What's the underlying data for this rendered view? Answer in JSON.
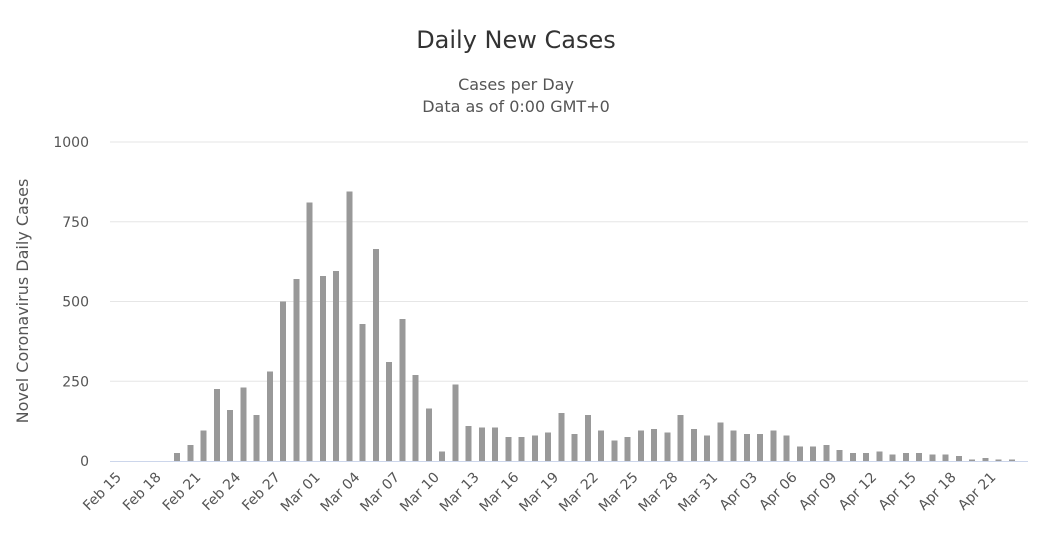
{
  "chart_data": {
    "type": "bar",
    "title": "Daily New Cases",
    "subtitle": "Cases per Day",
    "subtitle2": "Data as of 0:00 GMT+0",
    "xlabel": "",
    "ylabel": "Novel Coronavirus Daily Cases",
    "ylim": [
      0,
      1000
    ],
    "yticks": [
      0,
      250,
      500,
      750,
      1000
    ],
    "grid": true,
    "bar_color": "#999999",
    "grid_color": "#e6e6e6",
    "x": [
      "Feb 15",
      "Feb 16",
      "Feb 17",
      "Feb 18",
      "Feb 19",
      "Feb 20",
      "Feb 21",
      "Feb 22",
      "Feb 23",
      "Feb 24",
      "Feb 25",
      "Feb 26",
      "Feb 27",
      "Feb 28",
      "Feb 29",
      "Mar 01",
      "Mar 02",
      "Mar 03",
      "Mar 04",
      "Mar 05",
      "Mar 06",
      "Mar 07",
      "Mar 08",
      "Mar 09",
      "Mar 10",
      "Mar 11",
      "Mar 12",
      "Mar 13",
      "Mar 14",
      "Mar 15",
      "Mar 16",
      "Mar 17",
      "Mar 18",
      "Mar 19",
      "Mar 20",
      "Mar 21",
      "Mar 22",
      "Mar 23",
      "Mar 24",
      "Mar 25",
      "Mar 26",
      "Mar 27",
      "Mar 28",
      "Mar 29",
      "Mar 30",
      "Mar 31",
      "Apr 01",
      "Apr 02",
      "Apr 03",
      "Apr 04",
      "Apr 05",
      "Apr 06",
      "Apr 07",
      "Apr 08",
      "Apr 09",
      "Apr 10",
      "Apr 11",
      "Apr 12",
      "Apr 13",
      "Apr 14",
      "Apr 15",
      "Apr 16",
      "Apr 17",
      "Apr 18",
      "Apr 19",
      "Apr 20",
      "Apr 21",
      "Apr 22"
    ],
    "values": [
      0,
      0,
      0,
      0,
      25,
      50,
      95,
      225,
      160,
      230,
      145,
      280,
      500,
      570,
      810,
      580,
      595,
      845,
      430,
      665,
      310,
      445,
      270,
      165,
      30,
      240,
      110,
      105,
      105,
      75,
      75,
      80,
      90,
      150,
      85,
      145,
      95,
      65,
      75,
      95,
      100,
      90,
      145,
      100,
      80,
      120,
      95,
      85,
      85,
      95,
      80,
      45,
      45,
      50,
      35,
      25,
      25,
      30,
      20,
      25,
      25,
      20,
      20,
      15,
      5,
      10,
      5,
      5
    ],
    "tick_labels": [
      "Feb 15",
      "Feb 18",
      "Feb 21",
      "Feb 24",
      "Feb 27",
      "Mar 01",
      "Mar 04",
      "Mar 07",
      "Mar 10",
      "Mar 13",
      "Mar 16",
      "Mar 19",
      "Mar 22",
      "Mar 25",
      "Mar 28",
      "Mar 31",
      "Apr 03",
      "Apr 06",
      "Apr 09",
      "Apr 12",
      "Apr 15",
      "Apr 18",
      "Apr 21"
    ]
  }
}
